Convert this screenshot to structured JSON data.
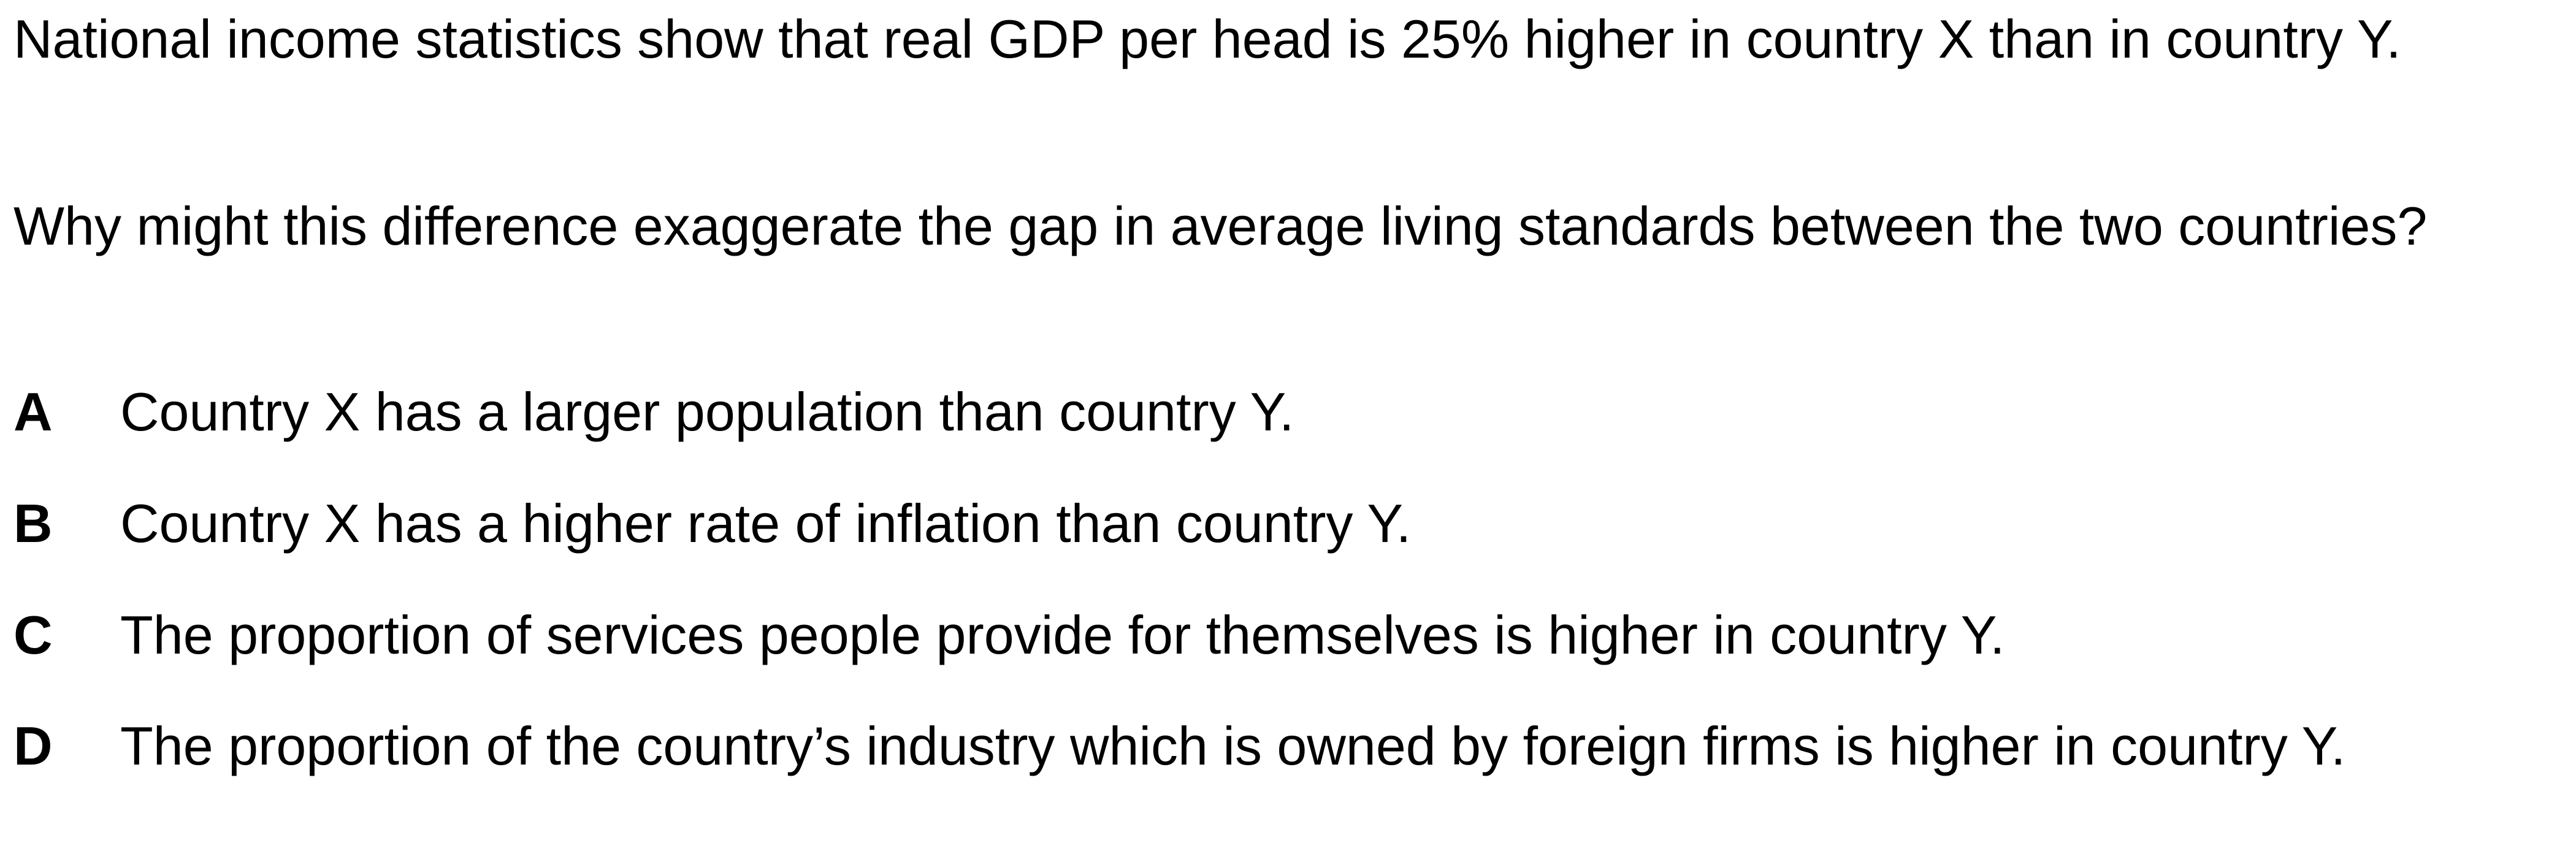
{
  "question": {
    "stem_paragraph_1": "National income statistics show that real GDP per head is 25% higher in country X than in country Y.",
    "stem_paragraph_2": "Why might this difference exaggerate the gap in average living standards between the two countries?"
  },
  "options": [
    {
      "letter": "A",
      "text": "Country X has a larger population than country Y."
    },
    {
      "letter": "B",
      "text": "Country X has a higher rate of inflation than country Y."
    },
    {
      "letter": "C",
      "text": "The proportion of services people provide for themselves is higher in country Y."
    },
    {
      "letter": "D",
      "text": "The proportion of the country’s industry which is owned by foreign firms is higher in country Y."
    }
  ]
}
